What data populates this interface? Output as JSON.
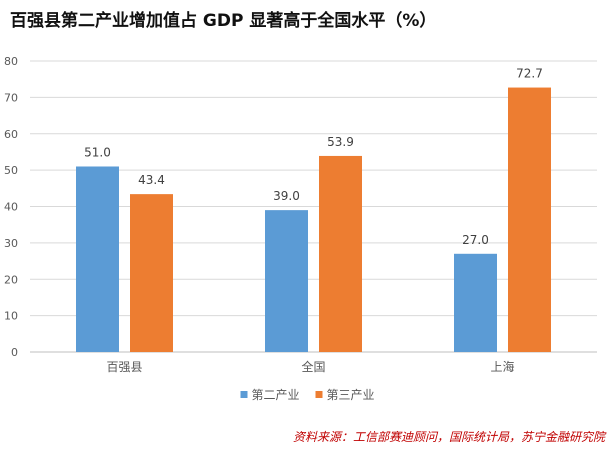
{
  "title": "百强县第二产业增加值占 GDP 显著高于全国水平（%）",
  "source": "资料来源：工信部赛迪顾问，国际统计局，苏宁金融研究院",
  "chart_data": {
    "type": "bar",
    "categories": [
      "百强县",
      "全国",
      "上海"
    ],
    "series": [
      {
        "name": "第二产业",
        "values": [
          51.0,
          39.0,
          27.0
        ],
        "color": "#5b9bd5"
      },
      {
        "name": "第三产业",
        "values": [
          43.4,
          53.9,
          72.7
        ],
        "color": "#ed7d31"
      }
    ],
    "data_labels": [
      [
        "51.0",
        "39.0",
        "27.0"
      ],
      [
        "43.4",
        "53.9",
        "72.7"
      ]
    ],
    "yticks": [
      "0",
      "10",
      "20",
      "30",
      "40",
      "50",
      "60",
      "70",
      "80"
    ],
    "ylim": [
      0,
      80
    ],
    "grid": true,
    "legend_position": "bottom",
    "colors": {
      "grid": "#d9d9d9",
      "axis": "#bfbfbf",
      "tick_text": "#595959",
      "label_text": "#404040"
    }
  }
}
